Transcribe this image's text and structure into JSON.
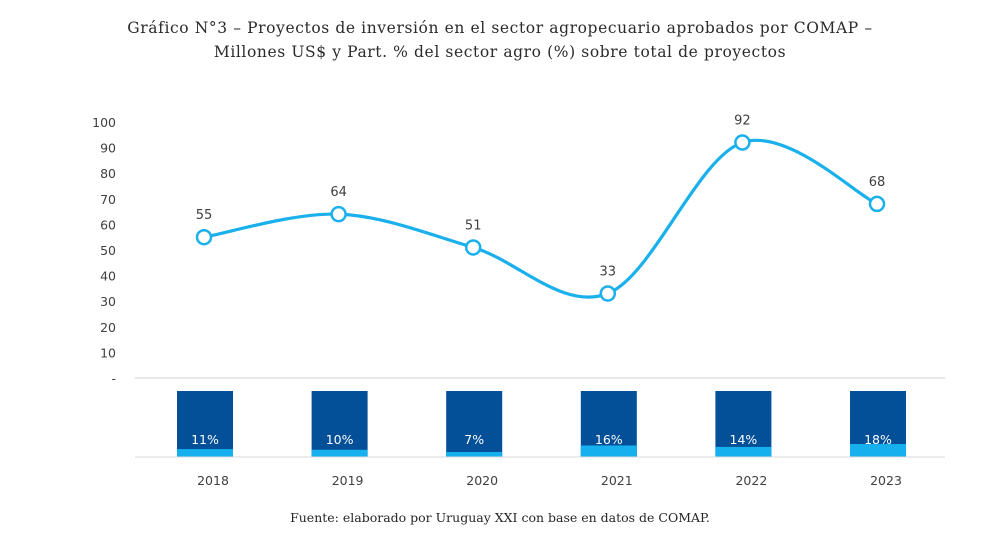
{
  "title": {
    "line1": "Gráfico N°3 – Proyectos de inversión en el sector agropecuario aprobados por COMAP –",
    "line2": "Millones US$ y Part. % del sector agro (%) sobre total de proyectos"
  },
  "chart_data": {
    "type": "line",
    "categories": [
      "2018",
      "2019",
      "2020",
      "2021",
      "2022",
      "2023"
    ],
    "series": [
      {
        "name": "Millones US$",
        "values": [
          55,
          64,
          51,
          33,
          92,
          68
        ]
      }
    ],
    "share_series": {
      "name": "Part. % del sector agro sobre total de proyectos",
      "values": [
        11,
        10,
        7,
        16,
        14,
        18
      ],
      "labels": [
        "11%",
        "10%",
        "7%",
        "16%",
        "14%",
        "18%"
      ]
    },
    "ylim": [
      0,
      100
    ],
    "yticks": [
      "-",
      "10",
      "20",
      "30",
      "40",
      "50",
      "60",
      "70",
      "80",
      "90",
      "100"
    ],
    "colors": {
      "line": "#1ab0ec",
      "bar": "#034f98",
      "bar_fill": "#17b0ee"
    }
  },
  "source": "Fuente: elaborado por Uruguay XXI con base en datos de COMAP."
}
